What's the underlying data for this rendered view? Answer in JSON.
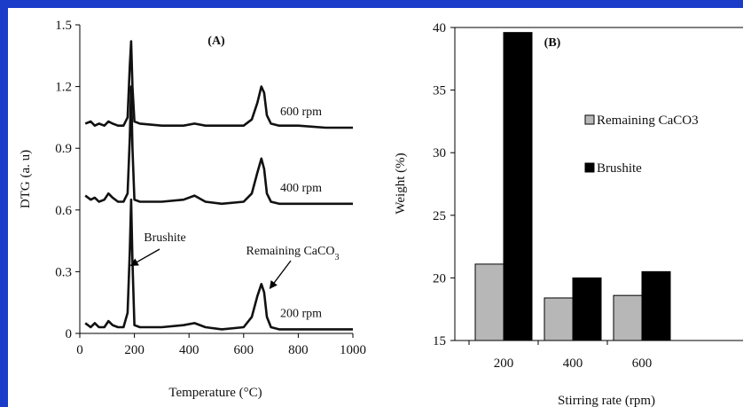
{
  "chart_data": [
    {
      "type": "line",
      "panel_label": "(A)",
      "xlabel": "Temperature (°C)",
      "ylabel": "DTG (a. u)",
      "xlim": [
        0,
        1000
      ],
      "ylim": [
        0,
        1.5
      ],
      "xticks": [
        "0",
        "200",
        "400",
        "600",
        "800",
        "1000"
      ],
      "yticks": [
        "0",
        "0.3",
        "0.6",
        "0.9",
        "1.2",
        "1.5"
      ],
      "grid": false,
      "series": [
        {
          "name": "600 rpm",
          "x": [
            20,
            40,
            55,
            70,
            90,
            105,
            120,
            140,
            160,
            175,
            183,
            188,
            193,
            200,
            220,
            300,
            380,
            420,
            460,
            520,
            600,
            630,
            650,
            665,
            675,
            685,
            700,
            730,
            800,
            900,
            1000
          ],
          "y": [
            1.02,
            1.03,
            1.01,
            1.02,
            1.01,
            1.03,
            1.02,
            1.01,
            1.01,
            1.05,
            1.3,
            1.42,
            1.2,
            1.03,
            1.02,
            1.01,
            1.01,
            1.02,
            1.01,
            1.01,
            1.01,
            1.04,
            1.12,
            1.2,
            1.17,
            1.06,
            1.02,
            1.01,
            1.01,
            1.0,
            1.0
          ]
        },
        {
          "name": "400 rpm",
          "x": [
            20,
            40,
            55,
            70,
            90,
            105,
            120,
            140,
            160,
            175,
            183,
            188,
            193,
            200,
            220,
            300,
            380,
            420,
            460,
            520,
            600,
            630,
            650,
            665,
            675,
            685,
            700,
            730,
            800,
            900,
            1000
          ],
          "y": [
            0.67,
            0.65,
            0.66,
            0.64,
            0.65,
            0.68,
            0.66,
            0.64,
            0.64,
            0.68,
            0.95,
            1.2,
            0.9,
            0.65,
            0.64,
            0.64,
            0.65,
            0.67,
            0.64,
            0.63,
            0.64,
            0.68,
            0.78,
            0.85,
            0.8,
            0.68,
            0.64,
            0.63,
            0.63,
            0.63,
            0.63
          ]
        },
        {
          "name": "200 rpm",
          "x": [
            20,
            40,
            55,
            70,
            90,
            105,
            120,
            140,
            160,
            175,
            183,
            188,
            193,
            200,
            220,
            300,
            380,
            420,
            460,
            520,
            600,
            630,
            650,
            665,
            675,
            685,
            700,
            730,
            800,
            900,
            1000
          ],
          "y": [
            0.05,
            0.03,
            0.05,
            0.03,
            0.03,
            0.06,
            0.04,
            0.03,
            0.03,
            0.1,
            0.4,
            0.65,
            0.35,
            0.04,
            0.03,
            0.03,
            0.04,
            0.05,
            0.03,
            0.02,
            0.03,
            0.08,
            0.18,
            0.24,
            0.2,
            0.08,
            0.03,
            0.02,
            0.02,
            0.02,
            0.02
          ]
        }
      ],
      "annotations": [
        {
          "text": "Brushite",
          "x": 190,
          "y": 0.33
        },
        {
          "text": "Remaining CaCO",
          "subscript": "3",
          "x": 670,
          "y": 0.24
        }
      ]
    },
    {
      "type": "bar",
      "panel_label": "(B)",
      "xlabel": "Stirring rate (rpm)",
      "ylabel": "Weight (%)",
      "categories": [
        "200",
        "400",
        "600"
      ],
      "ylim": [
        15,
        40
      ],
      "yticks": [
        "15",
        "20",
        "25",
        "30",
        "35",
        "40"
      ],
      "grid": false,
      "legend_position": "right",
      "series": [
        {
          "name": "Remaining CaCO3",
          "color": "#b7b7b7",
          "values": [
            21.1,
            18.4,
            18.6
          ]
        },
        {
          "name": "Brushite",
          "color": "#000000",
          "values": [
            39.6,
            20.0,
            20.5
          ]
        }
      ]
    }
  ]
}
